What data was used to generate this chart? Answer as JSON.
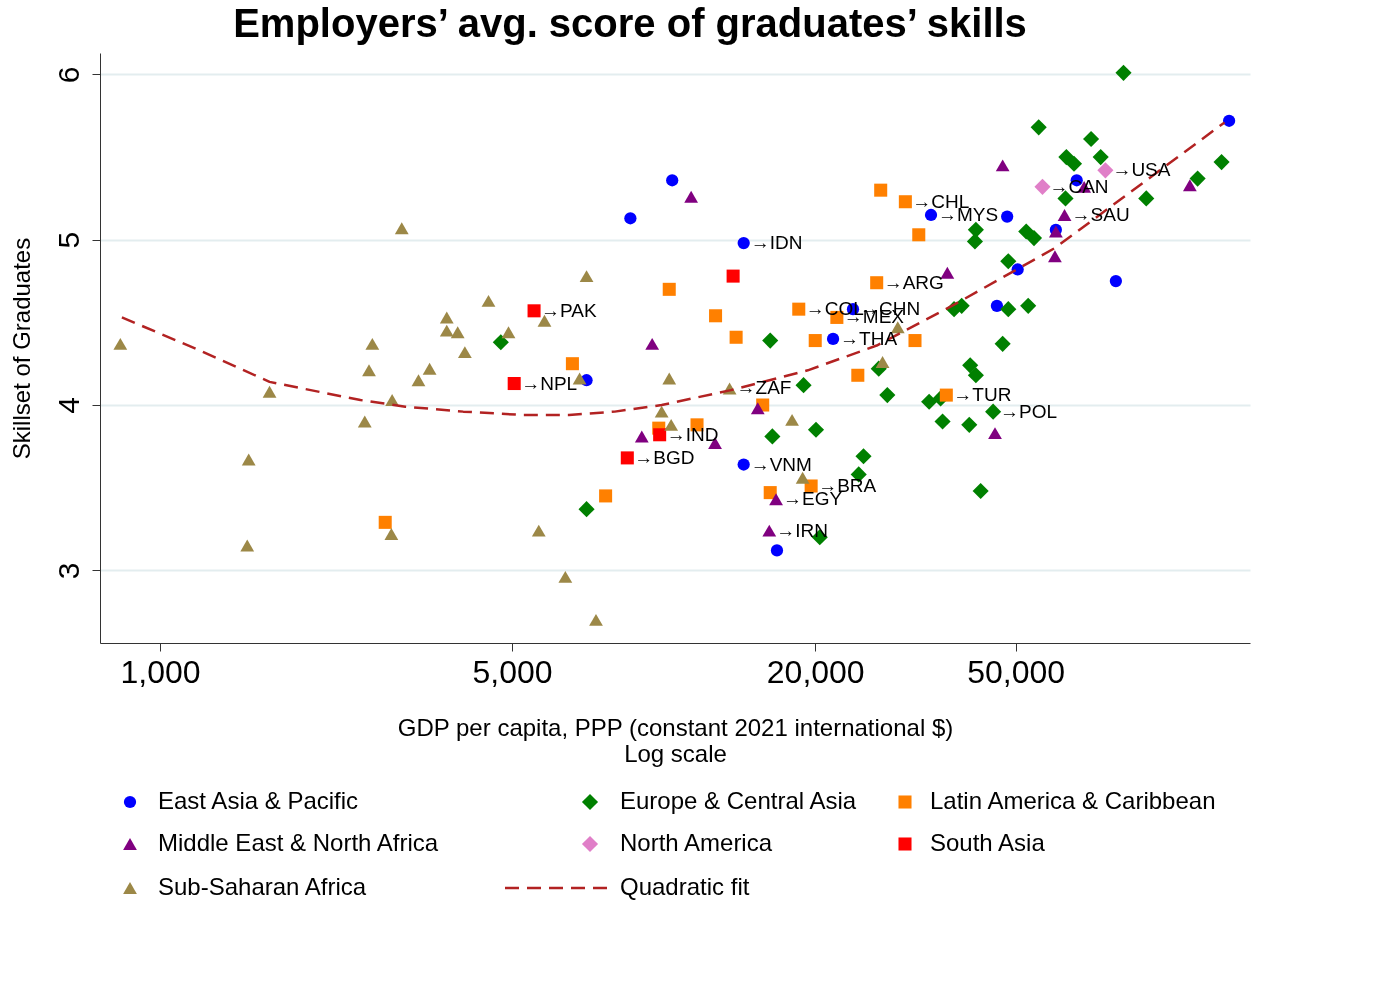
{
  "chart_data": {
    "type": "scatter",
    "title": "Employers’ avg. score of graduates’ skills",
    "xlabel": "GDP per capita, PPP (constant 2021 international $)\nLog scale",
    "ylabel": "Skillset of Graduates",
    "log": "x",
    "xlim": [
      760,
      146000
    ],
    "xticks": [
      {
        "value": 1000,
        "label": "1,000"
      },
      {
        "value": 5000,
        "label": "5,000"
      },
      {
        "value": 20000,
        "label": "20,000"
      },
      {
        "value": 50000,
        "label": "50,000"
      }
    ],
    "ylim": [
      2.56,
      6.13
    ],
    "yticks": [
      3,
      4,
      5,
      6
    ],
    "grid": "y",
    "legend": "bottom",
    "series": [
      {
        "name": "East Asia & Pacific",
        "type": "scatter",
        "marker": "circle",
        "color": "#0000ff",
        "x": [
          8590,
          10400,
          14420,
          7030,
          23770,
          21700,
          14420,
          16790,
          33960,
          48100,
          50470,
          45900,
          60100,
          66110,
          79070,
          132700
        ],
        "values": [
          5.13,
          5.36,
          4.98,
          4.15,
          4.58,
          4.4,
          3.64,
          3.12,
          5.15,
          5.14,
          4.82,
          4.6,
          5.06,
          5.36,
          4.75,
          5.72
        ]
      },
      {
        "name": "Europe & Central Asia",
        "type": "scatter",
        "marker": "diamond",
        "color": "#008000",
        "x": [
          4750,
          7030,
          16280,
          18960,
          16440,
          20070,
          24940,
          24400,
          20420,
          26740,
          27810,
          37730,
          39070,
          41690,
          41510,
          48350,
          48350,
          52960,
          47120,
          40620,
          41690,
          33670,
          35480,
          35800,
          40450,
          45110,
          42610,
          55560,
          70600,
          63050,
          65300,
          73760,
          62800,
          52480,
          54380,
          81880,
          90860,
          114900,
          128200
        ],
        "values": [
          4.38,
          3.37,
          4.39,
          4.12,
          3.81,
          3.85,
          3.69,
          3.58,
          3.2,
          4.22,
          4.06,
          4.58,
          4.6,
          5.06,
          4.99,
          4.87,
          4.58,
          4.6,
          4.37,
          4.24,
          4.18,
          4.02,
          4.04,
          3.9,
          3.88,
          3.96,
          3.48,
          5.68,
          5.61,
          5.5,
          5.46,
          5.5,
          5.25,
          5.05,
          5.01,
          6.01,
          5.25,
          5.37,
          5.47
        ]
      },
      {
        "name": "Latin America & Caribbean",
        "type": "scatter",
        "marker": "square",
        "color": "#ff8000",
        "x": [
          2800,
          6590,
          7670,
          10260,
          12680,
          13930,
          18550,
          22080,
          20000,
          24300,
          31560,
          26980,
          30200,
          32110,
          26490,
          15730,
          36420,
          11650,
          9780,
          16280,
          19630
        ],
        "values": [
          3.29,
          4.25,
          3.45,
          4.7,
          4.54,
          4.41,
          4.58,
          4.53,
          4.39,
          4.18,
          4.39,
          5.3,
          5.23,
          5.03,
          4.74,
          4.0,
          4.06,
          3.88,
          3.86,
          3.47,
          3.51
        ]
      },
      {
        "name": "Middle East & North Africa",
        "type": "scatter",
        "marker": "triangle",
        "color": "#800080",
        "x": [
          11340,
          9490,
          9050,
          12650,
          15380,
          16720,
          16210,
          36590,
          47120,
          59840,
          62530,
          60100,
          68400,
          110900,
          45500
        ],
        "values": [
          5.26,
          4.37,
          3.81,
          3.77,
          3.98,
          3.43,
          3.24,
          4.8,
          5.45,
          4.9,
          5.15,
          5.05,
          5.32,
          5.33,
          3.83
        ]
      },
      {
        "name": "North America",
        "type": "scatter",
        "marker": "diamond",
        "color": "#e07fc8",
        "x": [
          56530,
          75370
        ],
        "values": [
          5.32,
          5.42
        ]
      },
      {
        "name": "South Asia",
        "type": "scatter",
        "marker": "square",
        "color": "#ff0000",
        "x": [
          5530,
          5050,
          13740,
          9820,
          8470
        ],
        "values": [
          4.57,
          4.13,
          4.78,
          3.82,
          3.68
        ]
      },
      {
        "name": "Sub-Saharan Africa",
        "type": "scatter",
        "marker": "triangle",
        "color": "#9c8847",
        "x": [
          834,
          3020,
          7030,
          4490,
          3710,
          3710,
          3900,
          4920,
          5800,
          4030,
          2640,
          2600,
          3430,
          3260,
          1650,
          2890,
          2550,
          1500,
          1490,
          2880,
          5650,
          6380,
          7340,
          6810,
          10260,
          9910,
          10350,
          13520,
          17990,
          18880,
          29170,
          27210
        ],
        "values": [
          4.37,
          5.07,
          4.78,
          4.63,
          4.53,
          4.45,
          4.44,
          4.44,
          4.51,
          4.32,
          4.37,
          4.21,
          4.22,
          4.15,
          4.08,
          4.03,
          3.9,
          3.67,
          3.15,
          3.22,
          3.24,
          2.96,
          2.7,
          4.16,
          4.16,
          3.96,
          3.88,
          4.1,
          3.91,
          3.56,
          4.47,
          4.26
        ]
      },
      {
        "name": "Quadratic fit",
        "type": "line",
        "line_style": "dashed",
        "color": "#b22222",
        "x": [
          840,
          1200,
          1650,
          2500,
          3070,
          4000,
          5230,
          6490,
          8000,
          9910,
          13600,
          19330,
          26490,
          37900,
          59840,
          90000,
          130000
        ],
        "values": [
          4.53,
          4.33,
          4.14,
          4.03,
          3.99,
          3.96,
          3.94,
          3.94,
          3.96,
          4.0,
          4.09,
          4.21,
          4.36,
          4.61,
          4.95,
          5.35,
          5.71
        ]
      }
    ],
    "annotations": [
      {
        "text": "→PAK",
        "x": 5530,
        "y": 4.57
      },
      {
        "text": "→NPL",
        "x": 5050,
        "y": 4.13
      },
      {
        "text": "→IDN",
        "x": 14420,
        "y": 4.98
      },
      {
        "text": "→IND",
        "x": 9820,
        "y": 3.82
      },
      {
        "text": "→BGD",
        "x": 8470,
        "y": 3.68
      },
      {
        "text": "→VNM",
        "x": 14420,
        "y": 3.64
      },
      {
        "text": "→ZAF",
        "x": 13520,
        "y": 4.1
      },
      {
        "text": "→BRA",
        "x": 19630,
        "y": 3.51
      },
      {
        "text": "→EGY",
        "x": 16720,
        "y": 3.43
      },
      {
        "text": "→IRN",
        "x": 16210,
        "y": 3.24
      },
      {
        "text": "→COL",
        "x": 18550,
        "y": 4.58
      },
      {
        "text": "→CHN",
        "x": 23770,
        "y": 4.58
      },
      {
        "text": "→MEX",
        "x": 22080,
        "y": 4.53
      },
      {
        "text": "→THA",
        "x": 21700,
        "y": 4.4
      },
      {
        "text": "→ARG",
        "x": 26490,
        "y": 4.74
      },
      {
        "text": "→CHL",
        "x": 30200,
        "y": 5.23
      },
      {
        "text": "→MYS",
        "x": 33960,
        "y": 5.15
      },
      {
        "text": "→TUR",
        "x": 36420,
        "y": 4.06
      },
      {
        "text": "→POL",
        "x": 45110,
        "y": 3.96
      },
      {
        "text": "→USA",
        "x": 75370,
        "y": 5.42
      },
      {
        "text": "→CAN",
        "x": 56530,
        "y": 5.32
      },
      {
        "text": "→SAU",
        "x": 62530,
        "y": 5.15
      }
    ]
  }
}
